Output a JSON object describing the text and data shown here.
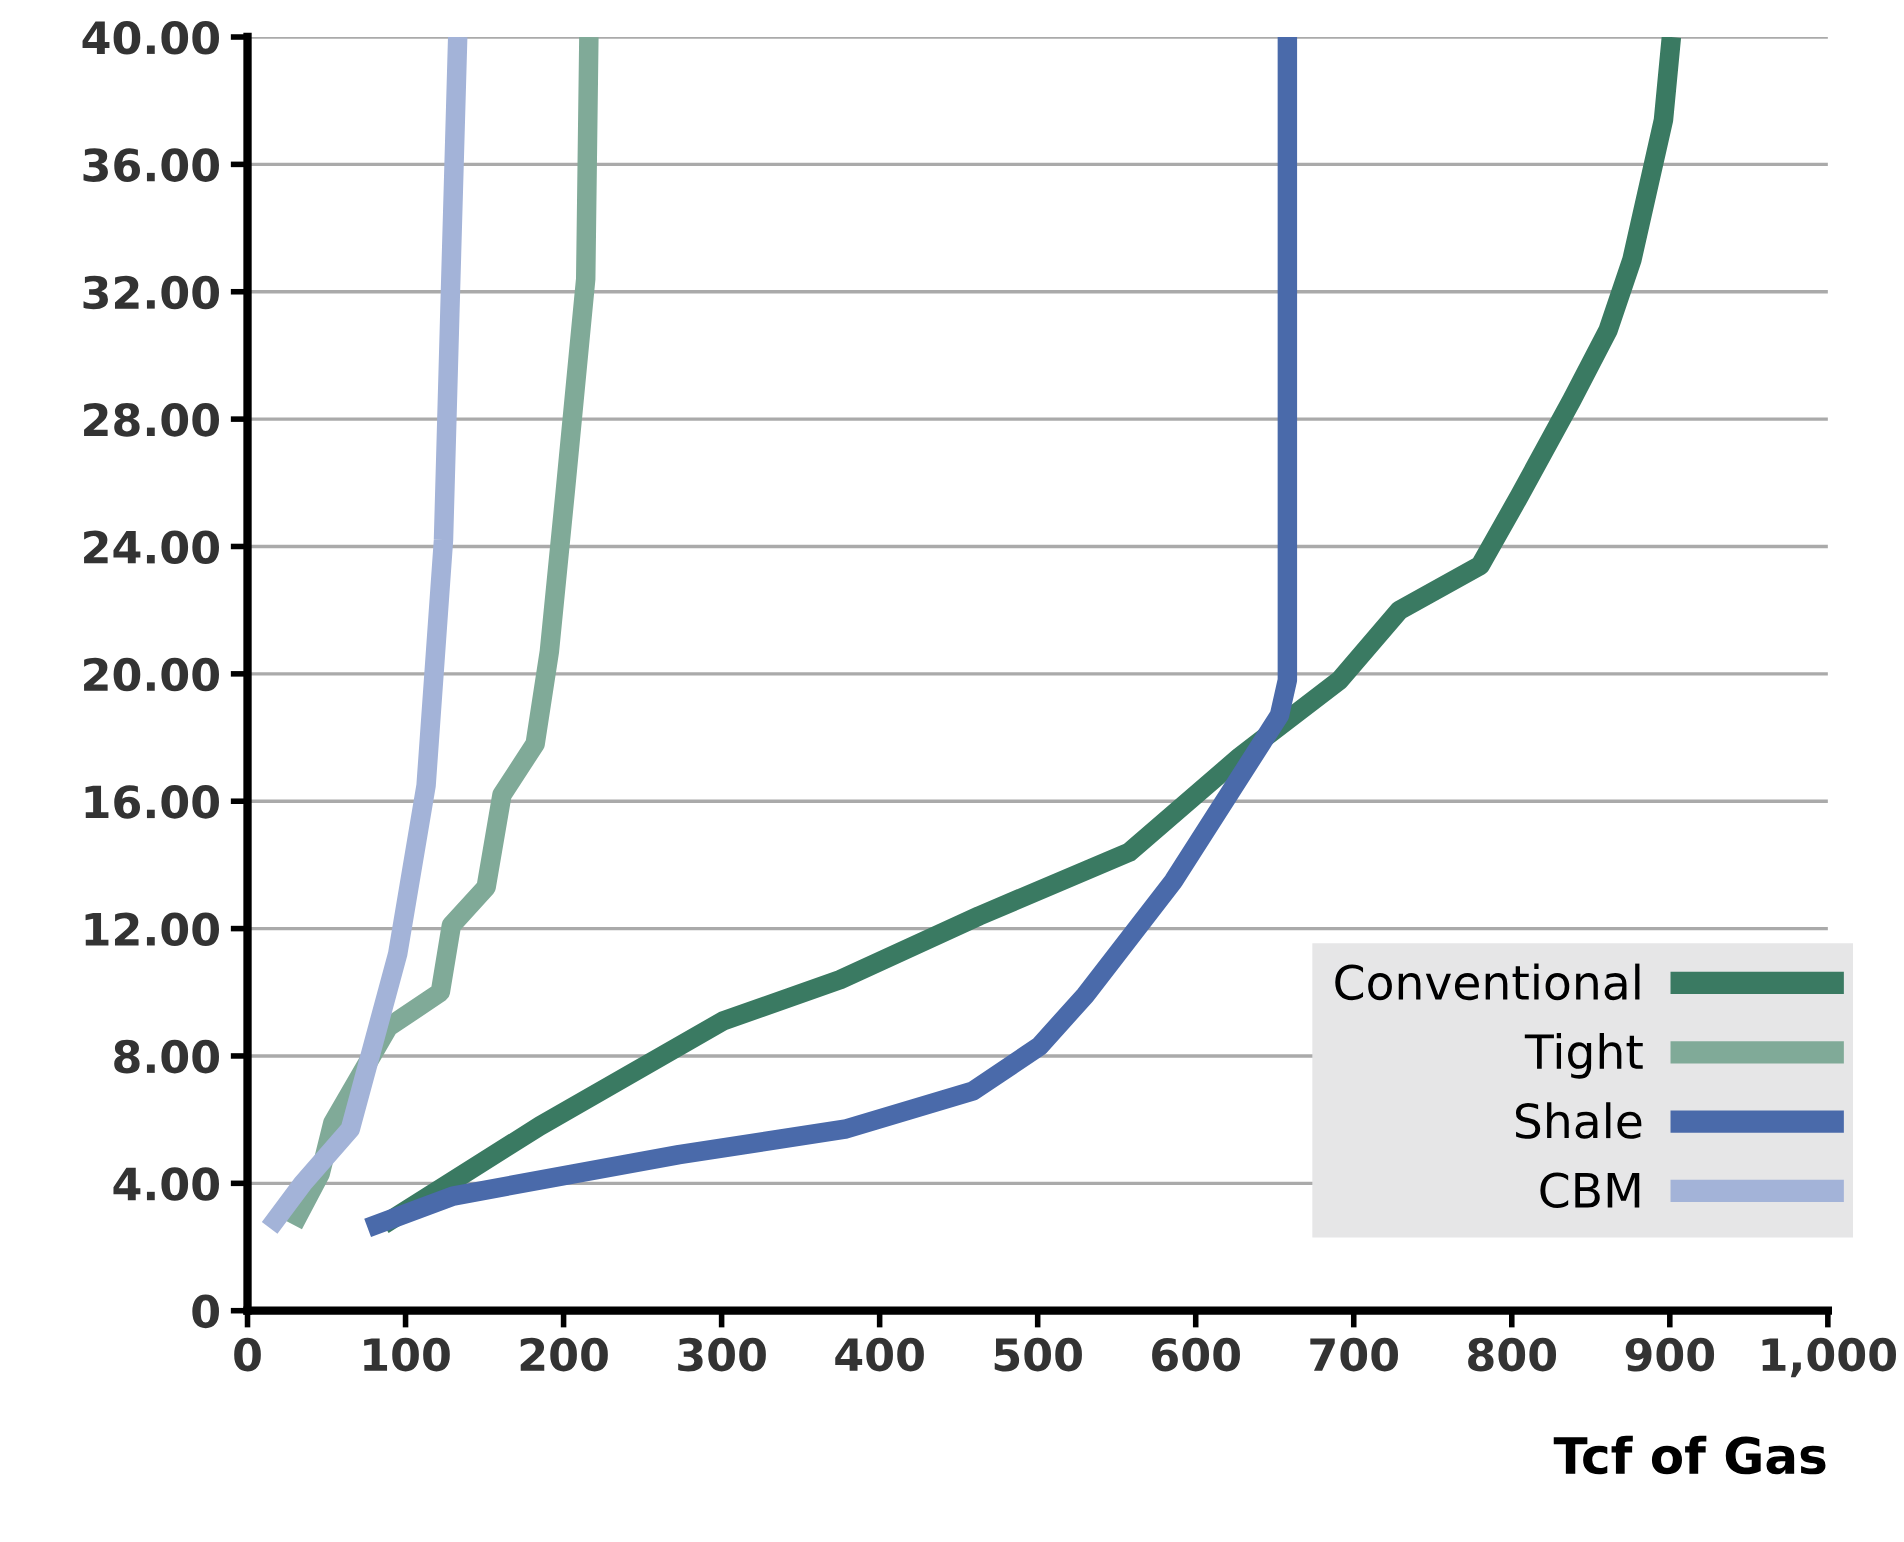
{
  "chart_data": {
    "type": "line",
    "xlabel": "Tcf of Gas",
    "xlim": [
      0,
      1000
    ],
    "xticks": [
      0,
      100,
      200,
      300,
      400,
      500,
      600,
      700,
      800,
      900,
      {
        "value": 1000,
        "label": "1,000"
      }
    ],
    "ylim": [
      0,
      40
    ],
    "yticks": [
      0,
      {
        "value": 4,
        "label": "4.00"
      },
      {
        "value": 8,
        "label": "8.00"
      },
      {
        "value": 12,
        "label": "12.00"
      },
      {
        "value": 16,
        "label": "16.00"
      },
      {
        "value": 20,
        "label": "20.00"
      },
      {
        "value": 24,
        "label": "24.00"
      },
      {
        "value": 28,
        "label": "28.00"
      },
      {
        "value": 32,
        "label": "32.00"
      },
      {
        "value": 36,
        "label": "36.00"
      },
      {
        "value": 40,
        "label": "40.00"
      }
    ],
    "grid": "y",
    "legend": "bottom right",
    "marker": "none",
    "line_style": "solid",
    "series": [
      {
        "name": "Conventional",
        "color": "#3a7a62",
        "x": [
          86,
          185,
          301,
          375,
          463,
          558,
          628,
          691,
          729,
          780,
          805,
          838,
          861,
          876,
          896,
          901
        ],
        "values": [
          2.7,
          5.8,
          9.1,
          10.4,
          12.4,
          14.4,
          17.4,
          19.8,
          22,
          23.4,
          25.6,
          28.6,
          30.8,
          33,
          37.4,
          40
        ]
      },
      {
        "name": "Tight",
        "color": "#80aa98",
        "x": [
          29,
          46,
          54,
          89,
          122,
          129,
          151,
          161,
          182,
          191,
          201,
          214,
          216
        ],
        "values": [
          2.7,
          4.3,
          5.9,
          8.9,
          10,
          12.1,
          13.3,
          16.2,
          17.8,
          20.7,
          25.7,
          32.4,
          40
        ]
      },
      {
        "name": "Shale",
        "color": "#4a6aaa",
        "x": [
          76,
          130,
          273,
          378,
          459,
          501,
          530,
          586,
          653,
          658,
          658
        ],
        "values": [
          2.6,
          3.6,
          4.9,
          5.7,
          6.9,
          8.3,
          9.9,
          13.5,
          18.7,
          19.8,
          40
        ]
      },
      {
        "name": "CBM",
        "color": "#a3b3d8",
        "x": [
          14,
          35,
          65,
          95,
          113,
          124,
          128,
          133
        ],
        "values": [
          2.6,
          4,
          5.7,
          11.2,
          16.5,
          24.2,
          31.3,
          40
        ]
      }
    ]
  }
}
